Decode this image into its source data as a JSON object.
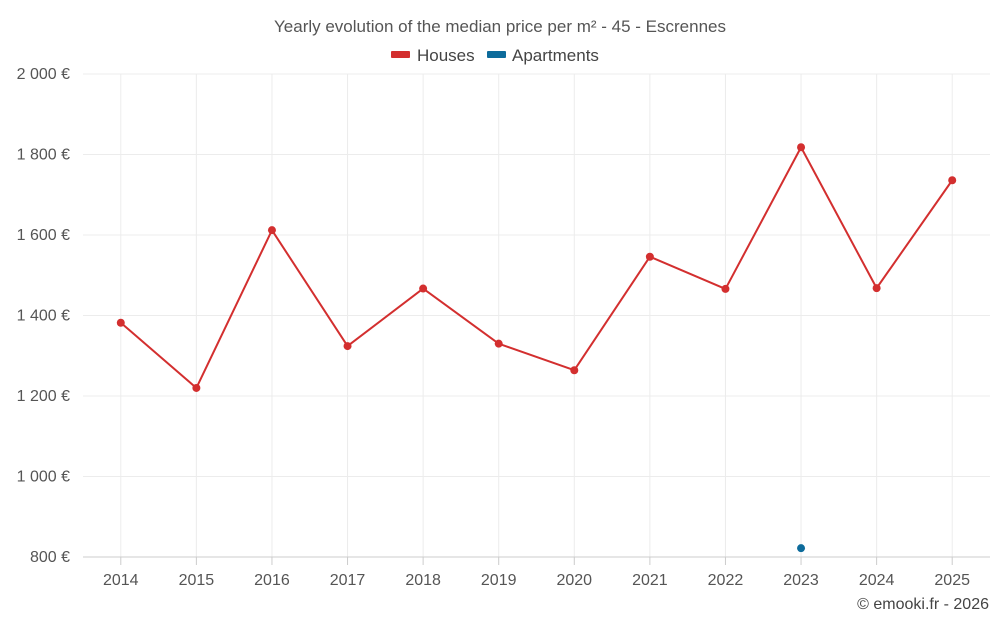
{
  "chart_data": {
    "type": "line",
    "title": "Yearly evolution of the median price per m² - 45 - Escrennes",
    "categories": [
      "2014",
      "2015",
      "2016",
      "2017",
      "2018",
      "2019",
      "2020",
      "2021",
      "2022",
      "2023",
      "2024",
      "2025"
    ],
    "series": [
      {
        "name": "Houses",
        "color": "#d32f2f",
        "values": [
          1382,
          1220,
          1612,
          1324,
          1467,
          1330,
          1264,
          1546,
          1466,
          1818,
          1468,
          1736
        ]
      },
      {
        "name": "Apartments",
        "color": "#0d6b9b",
        "values": [
          null,
          null,
          null,
          null,
          null,
          null,
          null,
          null,
          null,
          822,
          null,
          null
        ]
      }
    ],
    "ylim": [
      800,
      2000
    ],
    "yticks": [
      800,
      1000,
      1200,
      1400,
      1600,
      1800,
      2000
    ],
    "ytick_labels": [
      "800 €",
      "1 000 €",
      "1 200 €",
      "1 400 €",
      "1 600 €",
      "1 800 €",
      "2 000 €"
    ],
    "xlabel": "",
    "ylabel": "",
    "grid": true,
    "legend_position": "top-center"
  },
  "credit": "© emooki.fr - 2026"
}
